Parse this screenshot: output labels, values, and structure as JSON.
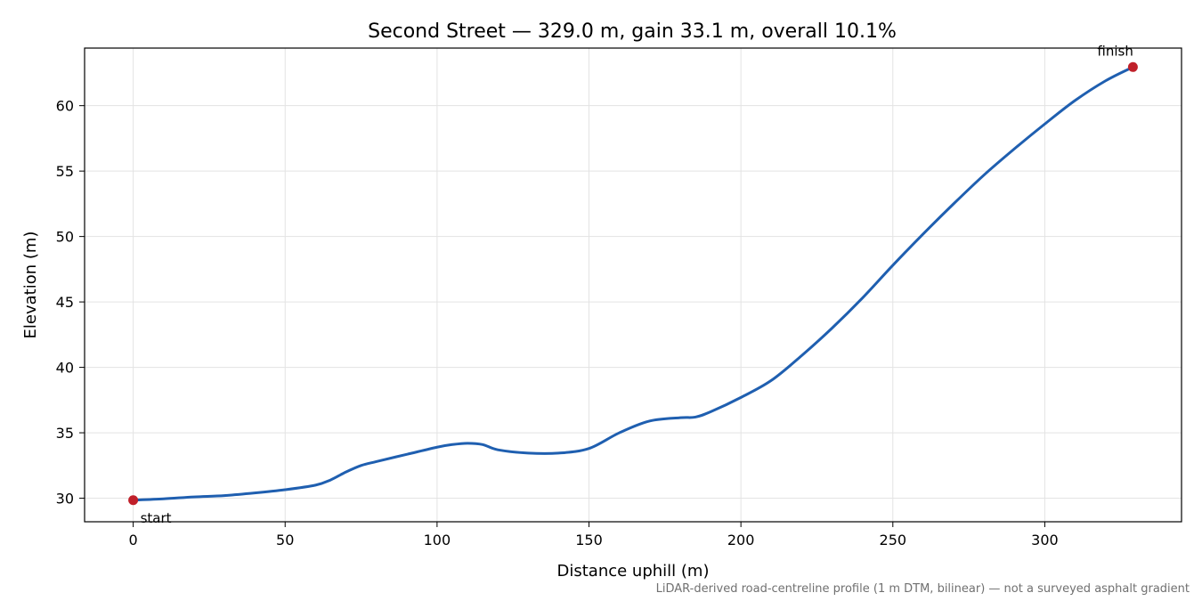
{
  "chart_data": {
    "type": "line",
    "title": "Second Street — 329.0 m, gain 33.1 m, overall 10.1%",
    "xlabel": "Distance uphill (m)",
    "ylabel": "Elevation (m)",
    "xlim": [
      -16,
      345
    ],
    "ylim": [
      28.2,
      64.4
    ],
    "xticks": [
      0,
      50,
      100,
      150,
      200,
      250,
      300
    ],
    "yticks": [
      30,
      35,
      40,
      45,
      50,
      55,
      60
    ],
    "grid": true,
    "line_color": "#1f5fb0",
    "marker_color": "#c0202a",
    "series": [
      {
        "x": [
          0,
          10,
          20,
          30,
          40,
          50,
          60,
          65,
          70,
          75,
          80,
          90,
          100,
          105,
          110,
          115,
          120,
          130,
          140,
          150,
          160,
          170,
          180,
          185,
          190,
          200,
          210,
          220,
          230,
          240,
          250,
          260,
          270,
          280,
          290,
          300,
          310,
          320,
          329
        ],
        "y": [
          29.85,
          29.95,
          30.1,
          30.2,
          30.4,
          30.65,
          31.0,
          31.4,
          32.0,
          32.5,
          32.8,
          33.35,
          33.9,
          34.1,
          34.2,
          34.1,
          33.7,
          33.45,
          33.45,
          33.8,
          35.0,
          35.9,
          36.15,
          36.2,
          36.6,
          37.7,
          39.0,
          40.9,
          43.0,
          45.3,
          47.8,
          50.2,
          52.5,
          54.7,
          56.7,
          58.6,
          60.4,
          61.9,
          62.95
        ]
      }
    ],
    "annotations": [
      {
        "label": "start",
        "x": 0,
        "y": 29.85
      },
      {
        "label": "finish",
        "x": 329,
        "y": 62.95
      }
    ],
    "note": "LiDAR-derived road-centreline profile (1 m DTM, bilinear) — not a surveyed asphalt gradient"
  }
}
